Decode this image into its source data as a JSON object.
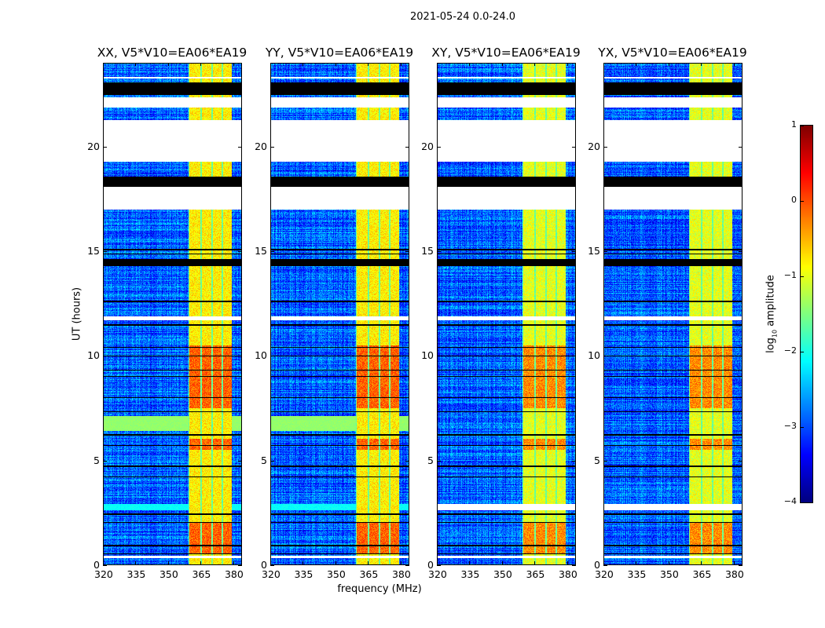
{
  "chart_data": {
    "type": "heatmap",
    "title": "2021-05-24 0.0-24.0",
    "xlabel": "frequency (MHz)",
    "ylabel": "UT (hours)",
    "xlim": [
      320,
      384
    ],
    "ylim": [
      0,
      24
    ],
    "xticks": [
      "320",
      "335",
      "350",
      "365",
      "380"
    ],
    "xtick_values": [
      320,
      335,
      350,
      365,
      380
    ],
    "yticks": [
      "0",
      "5",
      "10",
      "15",
      "20"
    ],
    "ytick_values": [
      0,
      5,
      10,
      15,
      20
    ],
    "colorbar": {
      "label": "log10 amplitude",
      "label_main": "log",
      "label_sub": "10",
      "label_rest": " amplitude",
      "colormap": "jet",
      "range": [
        -4,
        1
      ],
      "ticks": [
        "1",
        "0",
        "−1",
        "−2",
        "−3",
        "−4"
      ],
      "tick_values": [
        1,
        0,
        -1,
        -2,
        -3,
        -4
      ]
    },
    "panels": [
      {
        "title": "XX, V5*V10=EA06*EA19",
        "green_band": true,
        "cyan_gap": true
      },
      {
        "title": "YY, V5*V10=EA06*EA19",
        "green_band": true,
        "cyan_gap": true
      },
      {
        "title": "XY, V5*V10=EA06*EA19",
        "green_band": false,
        "cyan_gap": false
      },
      {
        "title": "YX, V5*V10=EA06*EA19",
        "green_band": false,
        "cyan_gap": false
      }
    ],
    "background_level": -2.9,
    "rfi_subbands_mhz": [
      [
        360,
        365
      ],
      [
        365.6,
        370.2
      ],
      [
        370.8,
        375
      ],
      [
        375.6,
        379.6
      ]
    ],
    "rfi_level": -0.8,
    "bright_periods_hours": [
      [
        5.5,
        6.0
      ],
      [
        0.5,
        2.0
      ],
      [
        7.5,
        10.5
      ]
    ],
    "bright_level": -0.1,
    "blank_gaps_hours": [
      [
        23.3,
        23.35
      ],
      [
        21.9,
        22.4
      ],
      [
        19.3,
        21.3
      ],
      [
        17.0,
        18.1
      ],
      [
        11.7,
        11.9
      ],
      [
        0.3,
        0.4
      ]
    ],
    "flagged_black_hours": [
      [
        22.5,
        23.1
      ],
      [
        18.1,
        18.6
      ],
      [
        15.05,
        15.12
      ],
      [
        14.85,
        14.9
      ],
      [
        14.3,
        14.65
      ],
      [
        12.58,
        12.64
      ],
      [
        11.45,
        11.5
      ],
      [
        10.38,
        10.43
      ],
      [
        9.97,
        10.02
      ],
      [
        9.28,
        9.33
      ],
      [
        8.98,
        9.03
      ],
      [
        7.98,
        8.03
      ],
      [
        7.28,
        7.33
      ],
      [
        6.18,
        6.23
      ],
      [
        5.68,
        5.73
      ],
      [
        4.68,
        4.73
      ],
      [
        4.18,
        4.23
      ],
      [
        2.38,
        2.43
      ],
      [
        1.98,
        2.03
      ],
      [
        0.88,
        0.93
      ],
      [
        0.48,
        0.53
      ]
    ],
    "green_band_hours": [
      6.4,
      7.1
    ],
    "cyan_gap_hours": [
      2.6,
      2.9
    ]
  }
}
